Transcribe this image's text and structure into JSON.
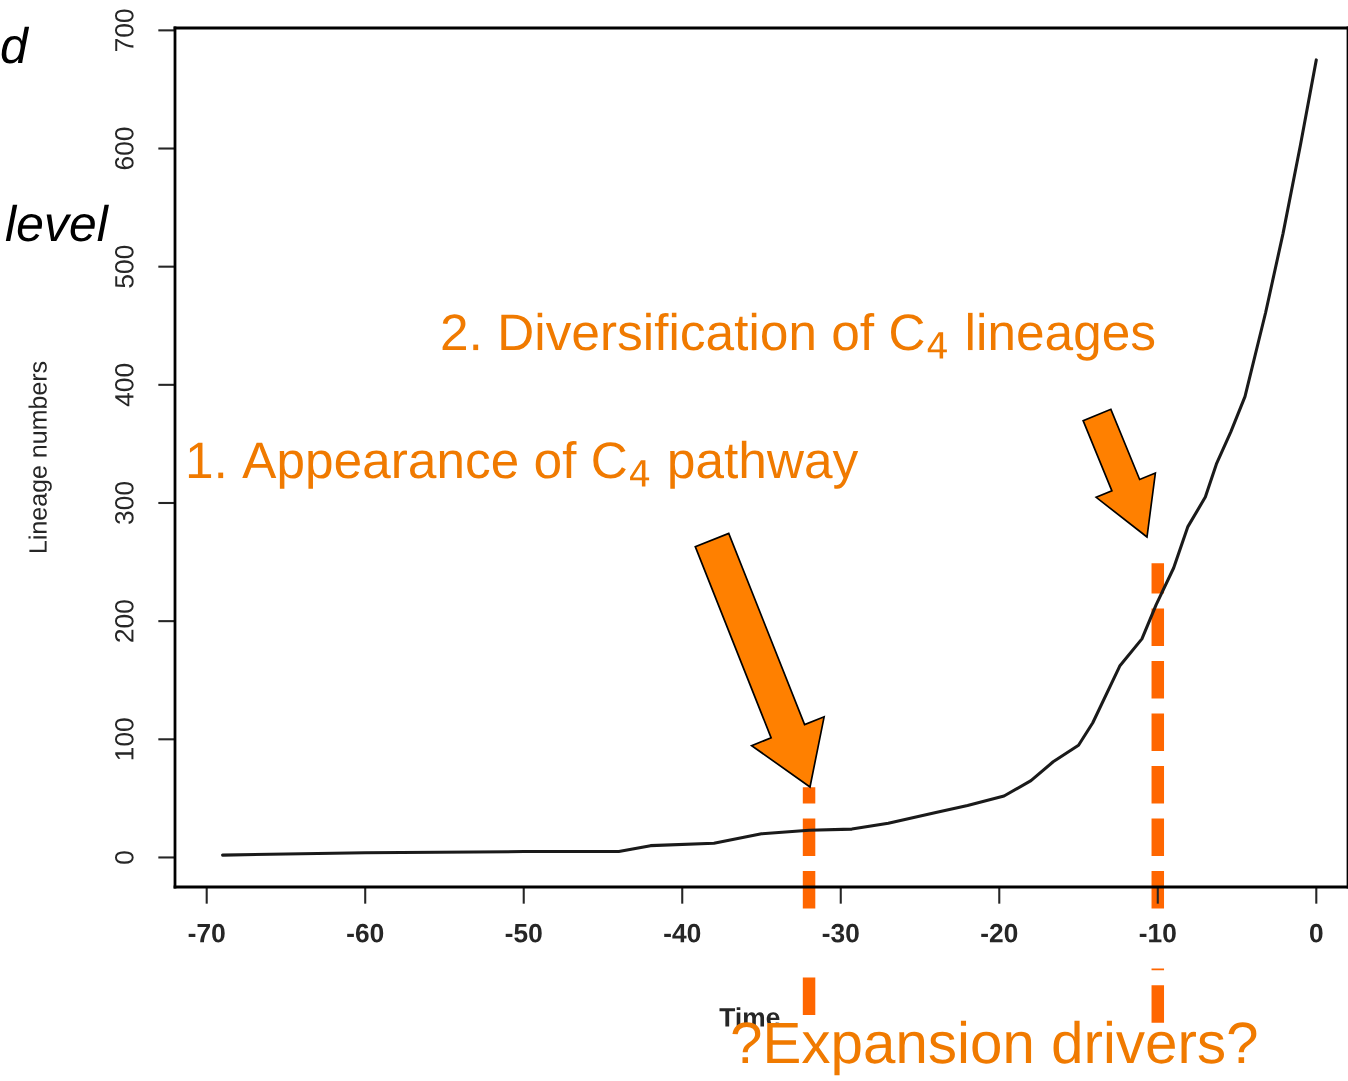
{
  "chart_data": {
    "type": "line",
    "xlabel": "Time",
    "ylabel": "Lineage numbers",
    "x": [
      -69,
      -60,
      -50,
      -44,
      -42,
      -38,
      -35,
      -32,
      -29.3,
      -27,
      -24,
      -22,
      -19.7,
      -18,
      -16.6,
      -15,
      -14.1,
      -12.4,
      -11,
      -10.1,
      -9,
      -8.1,
      -7,
      -6.3,
      -5.4,
      -4.5,
      -3.2,
      -2.1,
      -1,
      0
    ],
    "series": [
      {
        "color": "#1a1a1a",
        "values": [
          2,
          4,
          5,
          5,
          10,
          12,
          20,
          23,
          24,
          29,
          38,
          44,
          52,
          65,
          81,
          95,
          114,
          162,
          185,
          214,
          245,
          280,
          305,
          333,
          360,
          390,
          461,
          528,
          603,
          675
        ]
      }
    ],
    "xlim": [
      -72,
      2
    ],
    "ylim": [
      -25,
      702
    ],
    "xticks": [
      -70,
      -60,
      -50,
      -40,
      -30,
      -20,
      -10,
      0
    ],
    "yticks": [
      0,
      100,
      200,
      300,
      400,
      500,
      600,
      700
    ],
    "grid": false,
    "legend": false,
    "marker": "none",
    "line_style": "solid",
    "ref_lines": [
      {
        "axis": "x",
        "value": -32,
        "color": "#ff6600",
        "line_style": "dashed"
      },
      {
        "axis": "x",
        "value": -10,
        "color": "#ff6600",
        "line_style": "dashed"
      }
    ],
    "annotations": [
      "1. Appearance of C$_{4}$ pathway",
      "2. Diversification of C$_{4}$ lineages",
      "?Expansion drivers?",
      "d",
      "level"
    ]
  }
}
